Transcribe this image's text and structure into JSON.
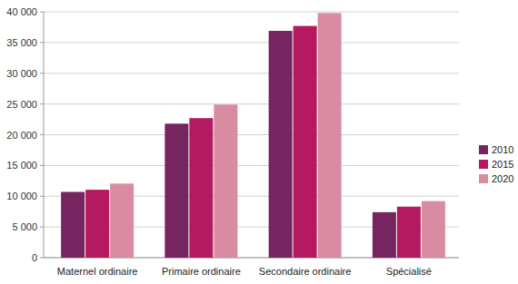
{
  "chart_data": {
    "type": "bar",
    "categories": [
      "Maternel ordinaire",
      "Primaire ordinaire",
      "Secondaire ordinaire",
      "Spécialisé"
    ],
    "series": [
      {
        "name": "2010",
        "color": "#762560",
        "values": [
          10700,
          21800,
          36900,
          7400
        ]
      },
      {
        "name": "2015",
        "color": "#b5195f",
        "values": [
          11050,
          22700,
          37700,
          8300
        ]
      },
      {
        "name": "2020",
        "color": "#d88ba1",
        "values": [
          12050,
          24900,
          39800,
          9200
        ]
      }
    ],
    "ylim": [
      0,
      40000
    ],
    "yticks": [
      0,
      {
        "value": 5000,
        "label": "5 000"
      },
      {
        "value": 10000,
        "label": "10 000"
      },
      {
        "value": 15000,
        "label": "15 000"
      },
      {
        "value": 20000,
        "label": "20 000"
      },
      {
        "value": 25000,
        "label": "25 000"
      },
      {
        "value": 30000,
        "label": "30 000"
      },
      {
        "value": 35000,
        "label": "35 000"
      },
      {
        "value": 40000,
        "label": "40 000"
      }
    ],
    "grid": true,
    "legend": "right"
  }
}
